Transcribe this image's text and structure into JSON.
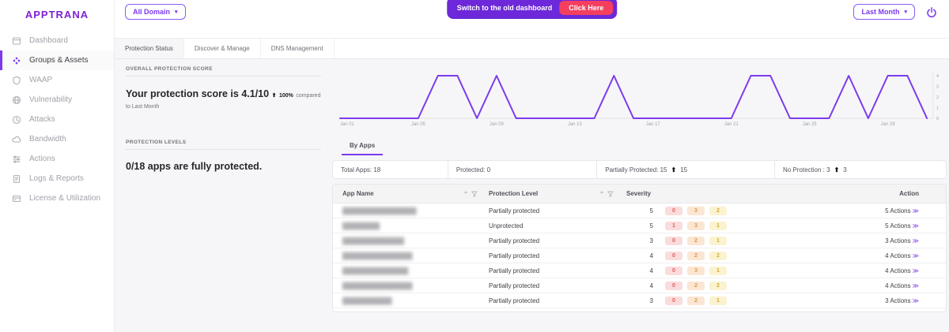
{
  "brand": {
    "logo": "APPTRANA"
  },
  "colors": {
    "accent": "#7c3aed",
    "banner_bg": "#6d28d9",
    "cta_bg": "#f43f5e",
    "badge_critical_bg": "#fadcdc",
    "badge_critical_text": "#e25c5c",
    "badge_high_bg": "#fbe6d4",
    "badge_high_text": "#e2974a",
    "badge_medium_bg": "#fbf3cf",
    "badge_medium_text": "#cfae3a"
  },
  "icons": {
    "caret_down": "▾",
    "arrow_up": "⬆",
    "chevron_double": "≫"
  },
  "topbar": {
    "domain_selector": {
      "label": "All Domain"
    },
    "banner": {
      "message": "Switch to the old dashboard",
      "cta": "Click Here"
    },
    "period_selector": {
      "label": "Last Month"
    }
  },
  "sidebar": {
    "items": [
      {
        "label": "Dashboard"
      },
      {
        "label": "Groups & Assets"
      },
      {
        "label": "WAAP"
      },
      {
        "label": "Vulnerability"
      },
      {
        "label": "Attacks"
      },
      {
        "label": "Bandwidth"
      },
      {
        "label": "Actions"
      },
      {
        "label": "Logs & Reports"
      },
      {
        "label": "License & Utilization"
      }
    ]
  },
  "tabs": {
    "items": [
      {
        "label": "Protection Status"
      },
      {
        "label": "Discover & Manage"
      },
      {
        "label": "DNS Management"
      }
    ]
  },
  "overall_protection": {
    "title": "OVERALL PROTECTION SCORE",
    "score_text": "Your protection score is 4.1/10",
    "delta_value": "100%",
    "delta_note": "compared to Last Month"
  },
  "protection_levels": {
    "title": "PROTECTION LEVELS",
    "summary": "0/18 apps are fully protected."
  },
  "apps_section": {
    "tab": "By Apps",
    "stats": [
      {
        "text": "Total Apps: 18"
      },
      {
        "text": "Protected: 0"
      },
      {
        "text": "Partially Protected: 15",
        "delta": "15"
      },
      {
        "text": "No Protection : 3",
        "delta": "3"
      }
    ]
  },
  "table": {
    "columns": [
      "App Name",
      "Protection Level",
      "Severity",
      "Action"
    ],
    "rows": [
      {
        "app_name_redacted": "██████████████████",
        "protection_level": "Partially protected",
        "severity": "5",
        "breakdown": [
          "0",
          "3",
          "2"
        ],
        "action": "5 Actions"
      },
      {
        "app_name_redacted": "█████████",
        "protection_level": "Unprotected",
        "severity": "5",
        "breakdown": [
          "1",
          "3",
          "1"
        ],
        "action": "5 Actions"
      },
      {
        "app_name_redacted": "███████████████",
        "protection_level": "Partially protected",
        "severity": "3",
        "breakdown": [
          "0",
          "2",
          "1"
        ],
        "action": "3 Actions"
      },
      {
        "app_name_redacted": "█████████████████",
        "protection_level": "Partially protected",
        "severity": "4",
        "breakdown": [
          "0",
          "2",
          "2"
        ],
        "action": "4 Actions"
      },
      {
        "app_name_redacted": "████████████████",
        "protection_level": "Partially protected",
        "severity": "4",
        "breakdown": [
          "0",
          "3",
          "1"
        ],
        "action": "4 Actions"
      },
      {
        "app_name_redacted": "█████████████████",
        "protection_level": "Partially protected",
        "severity": "4",
        "breakdown": [
          "0",
          "2",
          "2"
        ],
        "action": "4 Actions"
      },
      {
        "app_name_redacted": "████████████",
        "protection_level": "Partially protected",
        "severity": "3",
        "breakdown": [
          "0",
          "2",
          "1"
        ],
        "action": "3 Actions"
      }
    ],
    "partial_row": {
      "breakdown": [
        "",
        "",
        ""
      ]
    }
  },
  "chart_data": {
    "type": "line",
    "x": [
      "Jan 01",
      "Jan 02",
      "Jan 03",
      "Jan 04",
      "Jan 05",
      "Jan 06",
      "Jan 07",
      "Jan 08",
      "Jan 09",
      "Jan 10",
      "Jan 11",
      "Jan 12",
      "Jan 13",
      "Jan 14",
      "Jan 15",
      "Jan 16",
      "Jan 17",
      "Jan 18",
      "Jan 19",
      "Jan 20",
      "Jan 21",
      "Jan 22",
      "Jan 23",
      "Jan 24",
      "Jan 25",
      "Jan 26",
      "Jan 27",
      "Jan 28",
      "Jan 29",
      "Jan 30",
      "Jan 31"
    ],
    "values": [
      0,
      0,
      0,
      0,
      0,
      4,
      4,
      0,
      4,
      0,
      0,
      0,
      0,
      0,
      4,
      0,
      0,
      0,
      0,
      0,
      0,
      4,
      4,
      0,
      0,
      0,
      4,
      0,
      4,
      4,
      0
    ],
    "x_tick_positions": [
      0,
      4,
      8,
      12,
      16,
      20,
      24,
      28
    ],
    "x_tick_labels": [
      "Jan 01",
      "Jan 05",
      "Jan 09",
      "Jan 13",
      "Jan 17",
      "Jan 21",
      "Jan 25",
      "Jan 29"
    ],
    "y_ticks": [
      0,
      1,
      2,
      3,
      4
    ],
    "ylim": [
      0,
      4
    ],
    "y_axis_position": "right",
    "grid": false,
    "line_color": "#7c3aed"
  }
}
